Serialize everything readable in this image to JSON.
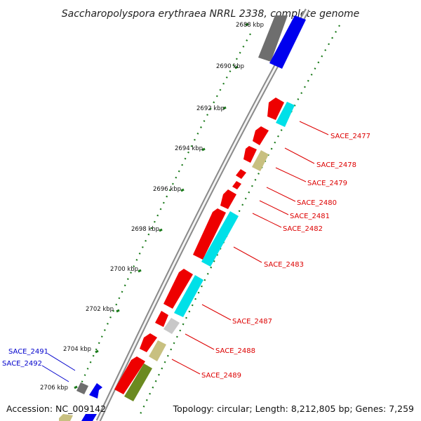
{
  "title": "Saccharopolyspora erythraea NRRL 2338, complete genome",
  "footer": {
    "accession": "Accession: NC_009142",
    "topology": "Topology: circular; Length: 8,212,805 bp; Genes: 7,259"
  },
  "colors": {
    "backbone": "#a8a8a8",
    "forward_label": "#0000cc",
    "reverse_label": "#dd0000",
    "red": "#ee0000",
    "cyan": "#00e0e8",
    "blue": "#0000ee",
    "olive": "#c8c080",
    "darkolive": "#6b8a20",
    "gray": "#707070",
    "silver": "#c8c8c8",
    "tick": "#1a7a1a"
  },
  "kbp_labels": [
    "2688 kbp",
    "2690 kbp",
    "2692 kbp",
    "2694 kbp",
    "2696 kbp",
    "2698 kbp",
    "2700 kbp",
    "2702 kbp",
    "2704 kbp",
    "2706 kbp"
  ],
  "gene_labels_right": [
    "SACE_2477",
    "SACE_2478",
    "SACE_2479",
    "SACE_2480",
    "SACE_2481",
    "SACE_2482",
    "SACE_2483",
    "SACE_2487",
    "SACE_2488",
    "SACE_2489"
  ],
  "gene_labels_left": [
    "SACE_2491",
    "SACE_2492"
  ]
}
